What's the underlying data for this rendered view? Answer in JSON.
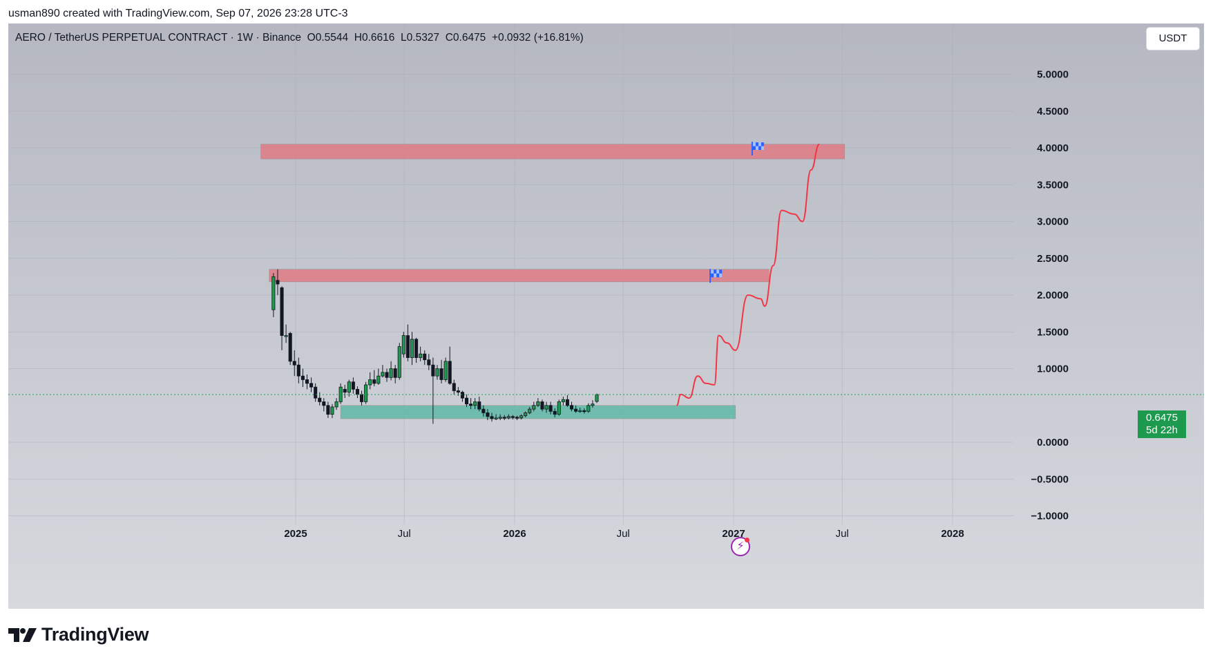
{
  "header": {
    "created_by": "usman890 created with TradingView.com, Sep 07, 2026 23:28 UTC-3"
  },
  "legend": {
    "symbol": "AERO / TetherUS PERPETUAL CONTRACT · 1W · Binance",
    "open_label": "O",
    "open": "0.5544",
    "high_label": "H",
    "high": "0.6616",
    "low_label": "L",
    "low": "0.5327",
    "close_label": "C",
    "close": "0.6475",
    "change": "+0.0932 (+16.81%)"
  },
  "currency_button": "USDT",
  "price_badge": {
    "price": "0.6475",
    "countdown": "5d 22h"
  },
  "brand": {
    "name": "TradingView"
  },
  "icons": {
    "brand": "tradingview-logo-icon",
    "flash": "lightning-icon",
    "flag": "checkered-flag-icon"
  },
  "colors": {
    "bull": "#1e9a4f",
    "bear": "#131722",
    "resistance_zone": "#e07a85",
    "support_zone": "#5fb8a8",
    "projection": "#f23645",
    "flag": "#2962ff",
    "badge": "#1e9a4f"
  },
  "chart_data": {
    "type": "candlestick",
    "timeframe": "1W",
    "y_ticks": [
      "5.0000",
      "4.5000",
      "4.0000",
      "3.5000",
      "3.0000",
      "2.5000",
      "2.0000",
      "1.5000",
      "1.0000",
      "0.0000",
      "−0.5000",
      "−1.0000"
    ],
    "y_tick_values": [
      5.0,
      4.5,
      4.0,
      3.5,
      3.0,
      2.5,
      2.0,
      1.5,
      1.0,
      0.0,
      -0.5,
      -1.0
    ],
    "ylim": [
      -1.5,
      5.5
    ],
    "x_ticks": [
      {
        "label": "2025",
        "date": "2025-01-01",
        "bold": true
      },
      {
        "label": "Jul",
        "date": "2025-07-01",
        "bold": false
      },
      {
        "label": "2026",
        "date": "2026-01-01",
        "bold": true
      },
      {
        "label": "Jul",
        "date": "2026-07-01",
        "bold": false
      },
      {
        "label": "2027",
        "date": "2027-01-01",
        "bold": true
      },
      {
        "label": "Jul",
        "date": "2027-07-01",
        "bold": false
      },
      {
        "label": "2028",
        "date": "2028-01-01",
        "bold": true
      }
    ],
    "first_candle_date": "2024-11-25",
    "candles": [
      [
        1.8,
        2.25,
        2.3,
        1.7
      ],
      [
        2.2,
        2.15,
        2.35,
        2.0
      ],
      [
        2.1,
        1.45,
        2.12,
        1.25
      ],
      [
        1.45,
        1.45,
        1.6,
        1.35
      ],
      [
        1.48,
        1.1,
        1.5,
        1.05
      ],
      [
        1.1,
        1.05,
        1.25,
        0.9
      ],
      [
        1.05,
        0.9,
        1.15,
        0.8
      ],
      [
        0.9,
        0.85,
        1.0,
        0.75
      ],
      [
        0.85,
        0.8,
        0.92,
        0.72
      ],
      [
        0.8,
        0.75,
        0.88,
        0.68
      ],
      [
        0.75,
        0.6,
        0.8,
        0.55
      ],
      [
        0.6,
        0.55,
        0.68,
        0.5
      ],
      [
        0.55,
        0.5,
        0.6,
        0.42
      ],
      [
        0.5,
        0.38,
        0.55,
        0.33
      ],
      [
        0.38,
        0.48,
        0.52,
        0.33
      ],
      [
        0.48,
        0.55,
        0.6,
        0.44
      ],
      [
        0.55,
        0.75,
        0.8,
        0.52
      ],
      [
        0.72,
        0.68,
        0.78,
        0.6
      ],
      [
        0.68,
        0.82,
        0.85,
        0.62
      ],
      [
        0.82,
        0.72,
        0.88,
        0.66
      ],
      [
        0.72,
        0.65,
        0.76,
        0.6
      ],
      [
        0.65,
        0.55,
        0.7,
        0.5
      ],
      [
        0.55,
        0.78,
        0.82,
        0.52
      ],
      [
        0.78,
        0.85,
        0.95,
        0.72
      ],
      [
        0.85,
        0.8,
        0.98,
        0.76
      ],
      [
        0.8,
        0.9,
        1.0,
        0.78
      ],
      [
        0.9,
        0.95,
        1.05,
        0.88
      ],
      [
        0.95,
        0.88,
        1.0,
        0.82
      ],
      [
        0.88,
        1.0,
        1.1,
        0.84
      ],
      [
        1.0,
        0.88,
        1.05,
        0.8
      ],
      [
        0.88,
        1.3,
        1.35,
        0.85
      ],
      [
        1.2,
        1.45,
        1.5,
        1.15
      ],
      [
        1.45,
        1.15,
        1.6,
        1.1
      ],
      [
        1.15,
        1.4,
        1.5,
        1.05
      ],
      [
        1.4,
        1.15,
        1.42,
        1.08
      ],
      [
        1.15,
        1.2,
        1.3,
        1.1
      ],
      [
        1.2,
        1.12,
        1.25,
        1.05
      ],
      [
        1.12,
        1.05,
        1.2,
        0.98
      ],
      [
        1.05,
        0.9,
        1.15,
        0.25
      ],
      [
        0.9,
        1.0,
        1.05,
        0.85
      ],
      [
        1.0,
        0.85,
        1.12,
        0.8
      ],
      [
        0.85,
        1.1,
        1.15,
        0.82
      ],
      [
        1.1,
        0.8,
        1.3,
        0.78
      ],
      [
        0.8,
        0.7,
        0.85,
        0.65
      ],
      [
        0.7,
        0.68,
        0.75,
        0.63
      ],
      [
        0.68,
        0.6,
        0.7,
        0.55
      ],
      [
        0.6,
        0.52,
        0.65,
        0.48
      ],
      [
        0.52,
        0.5,
        0.6,
        0.45
      ],
      [
        0.5,
        0.55,
        0.6,
        0.45
      ],
      [
        0.55,
        0.45,
        0.62,
        0.42
      ],
      [
        0.45,
        0.4,
        0.5,
        0.35
      ],
      [
        0.4,
        0.35,
        0.45,
        0.3
      ],
      [
        0.35,
        0.32,
        0.4,
        0.28
      ],
      [
        0.32,
        0.33,
        0.38,
        0.3
      ],
      [
        0.33,
        0.34,
        0.38,
        0.3
      ],
      [
        0.34,
        0.33,
        0.37,
        0.3
      ],
      [
        0.33,
        0.35,
        0.38,
        0.31
      ],
      [
        0.35,
        0.34,
        0.37,
        0.31
      ],
      [
        0.34,
        0.33,
        0.36,
        0.3
      ],
      [
        0.33,
        0.36,
        0.38,
        0.31
      ],
      [
        0.36,
        0.4,
        0.42,
        0.34
      ],
      [
        0.4,
        0.45,
        0.48,
        0.38
      ],
      [
        0.45,
        0.5,
        0.55,
        0.42
      ],
      [
        0.5,
        0.55,
        0.6,
        0.48
      ],
      [
        0.55,
        0.45,
        0.58,
        0.42
      ],
      [
        0.45,
        0.5,
        0.55,
        0.4
      ],
      [
        0.5,
        0.42,
        0.55,
        0.38
      ],
      [
        0.42,
        0.38,
        0.46,
        0.34
      ],
      [
        0.38,
        0.55,
        0.58,
        0.36
      ],
      [
        0.55,
        0.58,
        0.62,
        0.5
      ],
      [
        0.58,
        0.5,
        0.64,
        0.48
      ],
      [
        0.5,
        0.45,
        0.55,
        0.42
      ],
      [
        0.45,
        0.42,
        0.5,
        0.4
      ],
      [
        0.42,
        0.43,
        0.47,
        0.4
      ],
      [
        0.43,
        0.42,
        0.46,
        0.39
      ],
      [
        0.42,
        0.5,
        0.53,
        0.4
      ],
      [
        0.5,
        0.52,
        0.57,
        0.47
      ],
      [
        0.5544,
        0.6475,
        0.6616,
        0.5327
      ]
    ],
    "zones": [
      {
        "kind": "resistance",
        "start": "2024-11-04",
        "end": "2027-07-05",
        "bottom": 3.85,
        "top": 4.05
      },
      {
        "kind": "resistance",
        "start": "2024-11-18",
        "end": "2027-03-01",
        "bottom": 2.18,
        "top": 2.35
      },
      {
        "kind": "support",
        "start": "2025-03-17",
        "end": "2027-01-04",
        "bottom": 0.32,
        "top": 0.5
      }
    ],
    "flags": [
      {
        "date": "2027-02-01",
        "price": 4.0
      },
      {
        "date": "2026-11-23",
        "price": 2.27
      }
    ],
    "projection_path": [
      [
        "2026-09-28",
        0.5
      ],
      [
        "2026-10-05",
        0.65
      ],
      [
        "2026-10-19",
        0.6
      ],
      [
        "2026-11-02",
        0.9
      ],
      [
        "2026-11-16",
        0.8
      ],
      [
        "2026-11-30",
        0.78
      ],
      [
        "2026-12-07",
        1.45
      ],
      [
        "2026-12-21",
        1.35
      ],
      [
        "2027-01-04",
        1.25
      ],
      [
        "2027-01-25",
        2.0
      ],
      [
        "2027-02-15",
        1.95
      ],
      [
        "2027-02-22",
        1.85
      ],
      [
        "2027-03-08",
        2.4
      ],
      [
        "2027-03-22",
        3.15
      ],
      [
        "2027-04-12",
        3.1
      ],
      [
        "2027-04-26",
        3.0
      ],
      [
        "2027-05-10",
        3.7
      ],
      [
        "2027-05-24",
        4.05
      ]
    ],
    "last_price": 0.6475,
    "grid": true
  }
}
